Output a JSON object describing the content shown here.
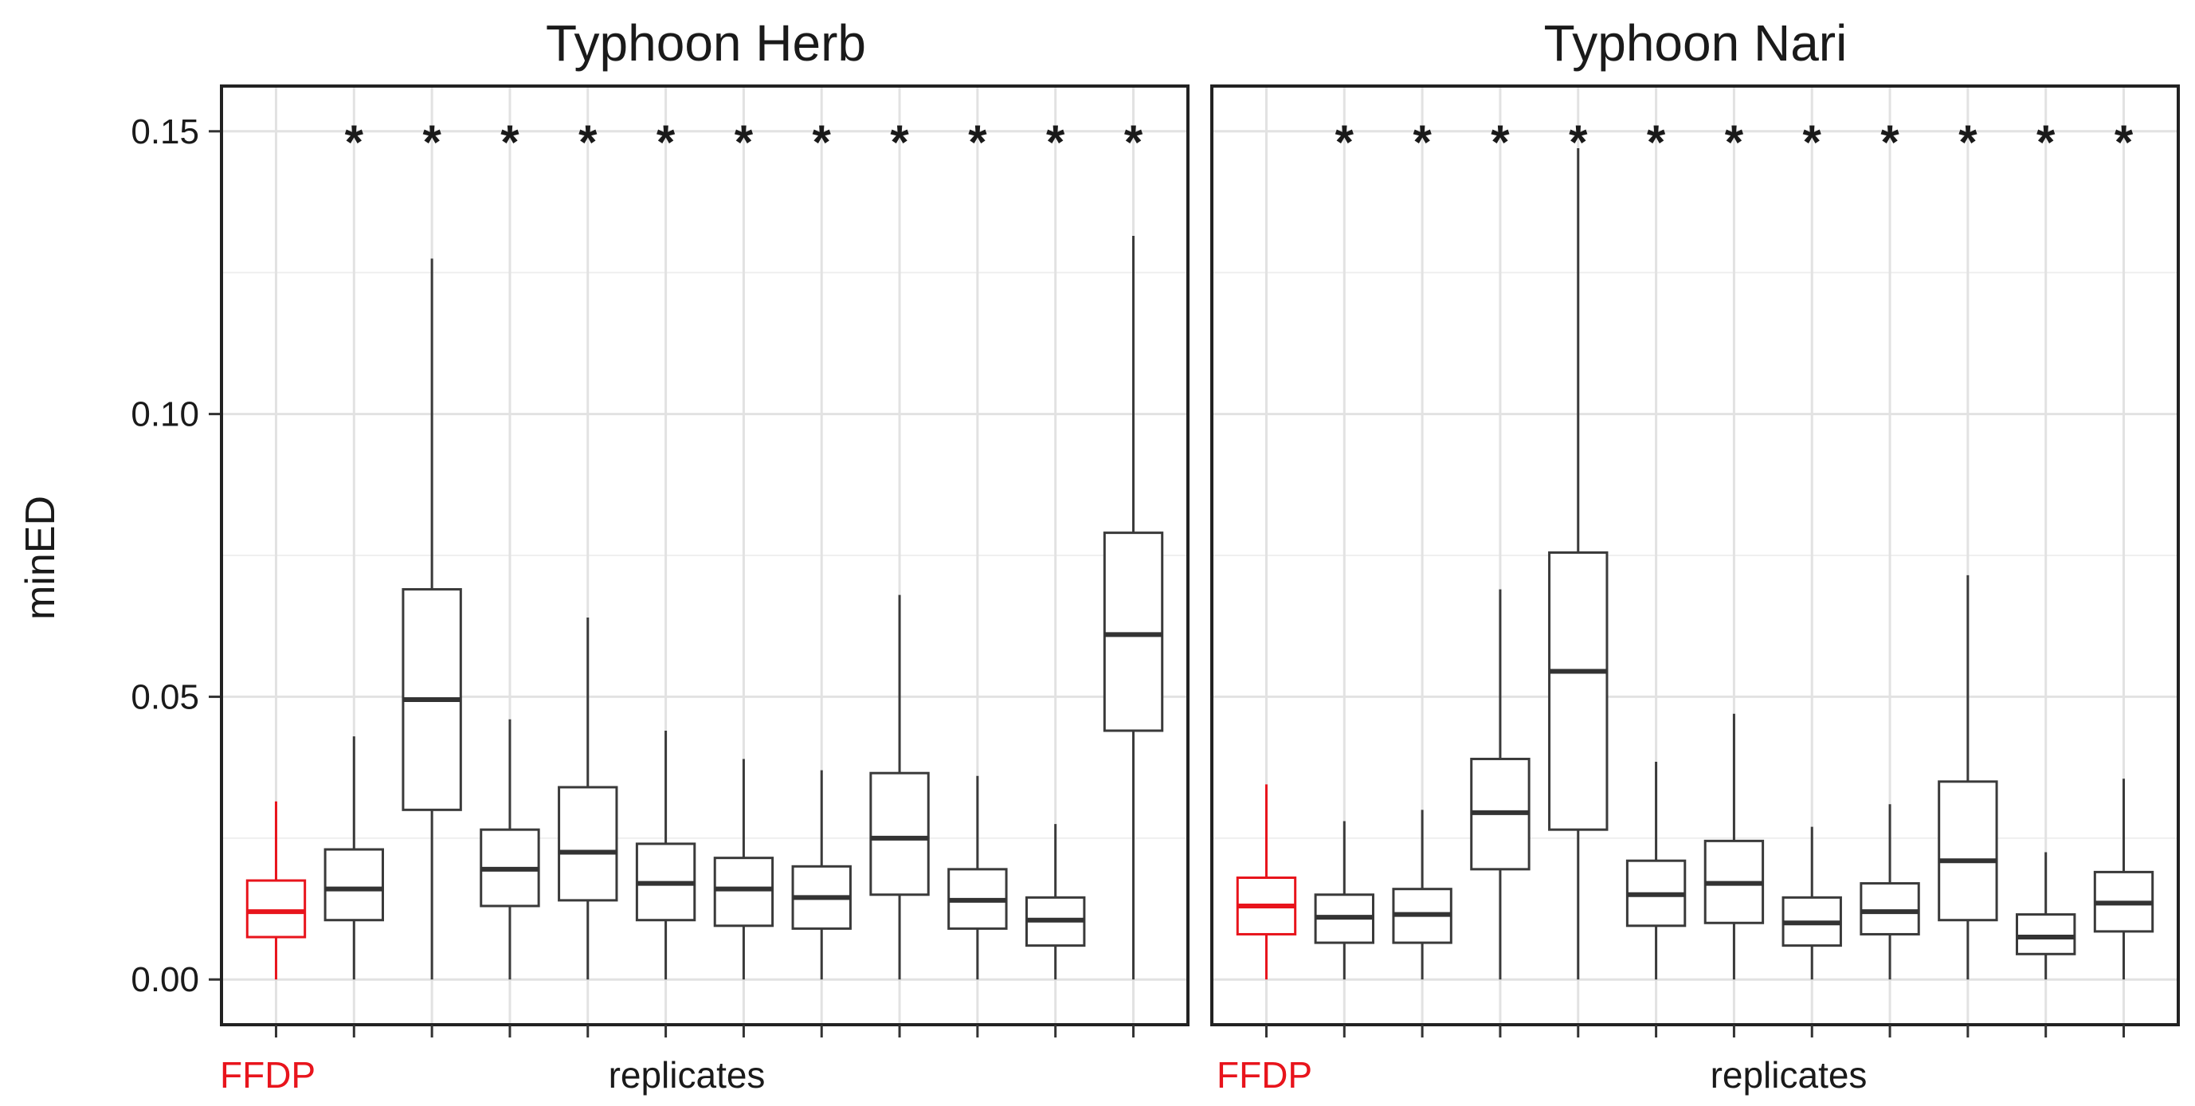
{
  "chart_data": {
    "type": "box",
    "ylabel": "minED",
    "ylim": [
      -0.008,
      0.158
    ],
    "yticks": [
      0.0,
      0.05,
      0.1,
      0.15
    ],
    "ytick_labels": [
      "0.00",
      "0.05",
      "0.10",
      "0.15"
    ],
    "grid": true,
    "colors": {
      "highlight": "#e8141c",
      "default": "#3a3a3a",
      "grid": "#e2e2e2",
      "frame": "#222222"
    },
    "panels": [
      {
        "title": "Typhoon Herb",
        "xlabel_highlight": "FFDP",
        "xlabel": "replicates",
        "boxes": [
          {
            "min": 0.0,
            "q1": 0.0075,
            "median": 0.012,
            "q3": 0.0175,
            "max": 0.0315,
            "highlight": true,
            "star": false
          },
          {
            "min": 0.0,
            "q1": 0.0105,
            "median": 0.016,
            "q3": 0.023,
            "max": 0.043,
            "highlight": false,
            "star": true
          },
          {
            "min": 0.0,
            "q1": 0.03,
            "median": 0.0495,
            "q3": 0.069,
            "max": 0.1275,
            "highlight": false,
            "star": true
          },
          {
            "min": 0.0,
            "q1": 0.013,
            "median": 0.0195,
            "q3": 0.0265,
            "max": 0.046,
            "highlight": false,
            "star": true
          },
          {
            "min": 0.0,
            "q1": 0.014,
            "median": 0.0225,
            "q3": 0.034,
            "max": 0.064,
            "highlight": false,
            "star": true
          },
          {
            "min": 0.0,
            "q1": 0.0105,
            "median": 0.017,
            "q3": 0.024,
            "max": 0.044,
            "highlight": false,
            "star": true
          },
          {
            "min": 0.0,
            "q1": 0.0095,
            "median": 0.016,
            "q3": 0.0215,
            "max": 0.039,
            "highlight": false,
            "star": true
          },
          {
            "min": 0.0,
            "q1": 0.009,
            "median": 0.0145,
            "q3": 0.02,
            "max": 0.037,
            "highlight": false,
            "star": true
          },
          {
            "min": 0.0,
            "q1": 0.015,
            "median": 0.025,
            "q3": 0.0365,
            "max": 0.068,
            "highlight": false,
            "star": true
          },
          {
            "min": 0.0,
            "q1": 0.009,
            "median": 0.014,
            "q3": 0.0195,
            "max": 0.036,
            "highlight": false,
            "star": true
          },
          {
            "min": 0.0,
            "q1": 0.006,
            "median": 0.0105,
            "q3": 0.0145,
            "max": 0.0275,
            "highlight": false,
            "star": true
          },
          {
            "min": 0.0,
            "q1": 0.044,
            "median": 0.061,
            "q3": 0.079,
            "max": 0.1315,
            "highlight": false,
            "star": true
          }
        ]
      },
      {
        "title": "Typhoon Nari",
        "xlabel_highlight": "FFDP",
        "xlabel": "replicates",
        "boxes": [
          {
            "min": 0.0,
            "q1": 0.008,
            "median": 0.013,
            "q3": 0.018,
            "max": 0.0345,
            "highlight": true,
            "star": false
          },
          {
            "min": 0.0,
            "q1": 0.0065,
            "median": 0.011,
            "q3": 0.015,
            "max": 0.028,
            "highlight": false,
            "star": true
          },
          {
            "min": 0.0,
            "q1": 0.0065,
            "median": 0.0115,
            "q3": 0.016,
            "max": 0.03,
            "highlight": false,
            "star": true
          },
          {
            "min": 0.0,
            "q1": 0.0195,
            "median": 0.0295,
            "q3": 0.039,
            "max": 0.069,
            "highlight": false,
            "star": true
          },
          {
            "min": 0.0,
            "q1": 0.0265,
            "median": 0.0545,
            "q3": 0.0755,
            "max": 0.147,
            "highlight": false,
            "star": true
          },
          {
            "min": 0.0,
            "q1": 0.0095,
            "median": 0.015,
            "q3": 0.021,
            "max": 0.0385,
            "highlight": false,
            "star": true
          },
          {
            "min": 0.0,
            "q1": 0.01,
            "median": 0.017,
            "q3": 0.0245,
            "max": 0.047,
            "highlight": false,
            "star": true
          },
          {
            "min": 0.0,
            "q1": 0.006,
            "median": 0.01,
            "q3": 0.0145,
            "max": 0.027,
            "highlight": false,
            "star": true
          },
          {
            "min": 0.0,
            "q1": 0.008,
            "median": 0.012,
            "q3": 0.017,
            "max": 0.031,
            "highlight": false,
            "star": true
          },
          {
            "min": 0.0,
            "q1": 0.0105,
            "median": 0.021,
            "q3": 0.035,
            "max": 0.0715,
            "highlight": false,
            "star": true
          },
          {
            "min": 0.0,
            "q1": 0.0045,
            "median": 0.0075,
            "q3": 0.0115,
            "max": 0.0225,
            "highlight": false,
            "star": true
          },
          {
            "min": 0.0,
            "q1": 0.0085,
            "median": 0.0135,
            "q3": 0.019,
            "max": 0.0355,
            "highlight": false,
            "star": true
          }
        ]
      }
    ],
    "significance_marker": "*"
  }
}
